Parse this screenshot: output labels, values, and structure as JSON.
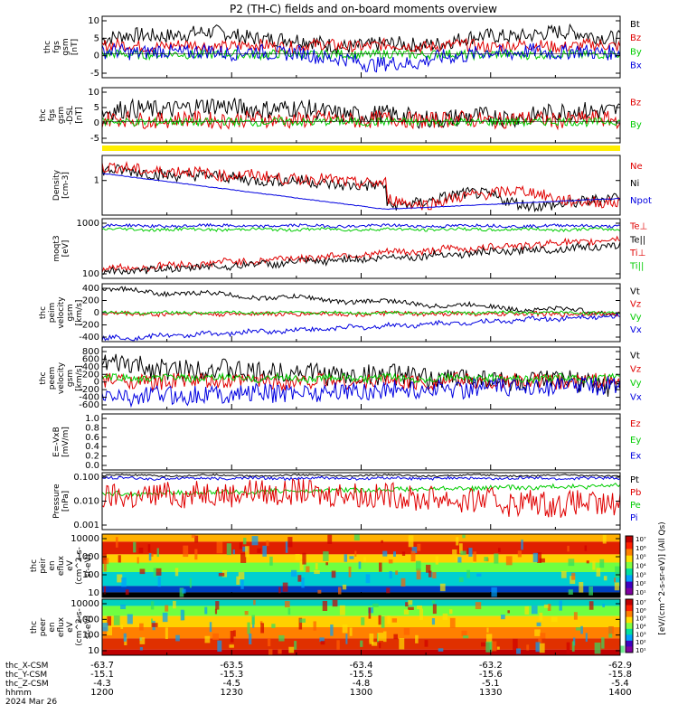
{
  "title": "P2 (TH-C) fields and on-board moments overview",
  "colors": {
    "black": "#000000",
    "red": "#e00000",
    "green": "#00cc00",
    "blue": "#0000e0",
    "yellow": "#ffee00"
  },
  "panels": [
    {
      "id": "fgs",
      "ylabel": [
        "thc",
        "fgs",
        "gsm",
        "[nT]"
      ],
      "ticks": [
        "10",
        "5",
        "0",
        "-5"
      ],
      "yrange": [
        -7,
        11
      ],
      "legend": [
        {
          "text": "Bt",
          "color": "#000000"
        },
        {
          "text": "Bz",
          "color": "#e00000"
        },
        {
          "text": "By",
          "color": "#00cc00"
        },
        {
          "text": "Bx",
          "color": "#0000e0"
        }
      ]
    },
    {
      "id": "fgs_dsl",
      "ylabel": [
        "thc",
        "fgs",
        "gsm",
        "-DSL",
        "[nT]"
      ],
      "ticks": [
        "10",
        "5",
        "0",
        "-5"
      ],
      "yrange": [
        -7,
        11
      ],
      "legend": [
        {
          "text": "Bz",
          "color": "#e00000"
        },
        {
          "text": "By",
          "color": "#00cc00"
        }
      ]
    },
    {
      "id": "density",
      "ylabel": [
        "Density",
        "[cm-3]"
      ],
      "ticks": [
        "1"
      ],
      "yrange": [
        0,
        1
      ],
      "legend": [
        {
          "text": "Ne",
          "color": "#e00000"
        },
        {
          "text": "Ni",
          "color": "#000000"
        },
        {
          "text": "Npot",
          "color": "#0000e0"
        }
      ]
    },
    {
      "id": "temp",
      "ylabel": [
        "moqt3",
        "[eV]"
      ],
      "ticks": [
        "1000",
        "100"
      ],
      "yrange": [
        0,
        1
      ],
      "legend": [
        {
          "text": "Te⊥",
          "color": "#e00000"
        },
        {
          "text": "Te||",
          "color": "#000000"
        },
        {
          "text": "Ti⊥",
          "color": "#e00000"
        },
        {
          "text": "Ti||",
          "color": "#00cc00"
        }
      ]
    },
    {
      "id": "peim",
      "ylabel": [
        "thc",
        "peim",
        "velocity",
        "gsm",
        "[km/s]"
      ],
      "ticks": [
        "400",
        "200",
        "0",
        "-200",
        "-400"
      ],
      "yrange": [
        -500,
        500
      ],
      "legend": [
        {
          "text": "Vt",
          "color": "#000000"
        },
        {
          "text": "Vz",
          "color": "#e00000"
        },
        {
          "text": "Vy",
          "color": "#00cc00"
        },
        {
          "text": "Vx",
          "color": "#0000e0"
        }
      ]
    },
    {
      "id": "peem",
      "ylabel": [
        "thc",
        "peem",
        "velocity",
        "gsm",
        "[km/s]"
      ],
      "ticks": [
        "800",
        "600",
        "400",
        "200",
        "0",
        "-200",
        "-400",
        "-600"
      ],
      "yrange": [
        -700,
        800
      ],
      "legend": [
        {
          "text": "Vt",
          "color": "#000000"
        },
        {
          "text": "Vz",
          "color": "#e00000"
        },
        {
          "text": "Vy",
          "color": "#00cc00"
        },
        {
          "text": "Vx",
          "color": "#0000e0"
        }
      ]
    },
    {
      "id": "exb",
      "ylabel": [
        "E=-VxB",
        "[mV/m]"
      ],
      "ticks": [
        "1.0",
        "0.8",
        "0.6",
        "0.4",
        "0.2",
        "0.0"
      ],
      "yrange": [
        0,
        1
      ],
      "legend": [
        {
          "text": "Ez",
          "color": "#e00000"
        },
        {
          "text": "Ey",
          "color": "#00cc00"
        },
        {
          "text": "Ex",
          "color": "#0000e0"
        }
      ]
    },
    {
      "id": "pressure",
      "ylabel": [
        "Pressure",
        "[nPa]"
      ],
      "ticks": [
        "0.100",
        "0.010",
        "0.001"
      ],
      "yrange": [
        0,
        1
      ],
      "legend": [
        {
          "text": "Pt",
          "color": "#000000"
        },
        {
          "text": "Pb",
          "color": "#e00000"
        },
        {
          "text": "Pe",
          "color": "#00cc00"
        },
        {
          "text": "Pi",
          "color": "#0000e0"
        }
      ]
    },
    {
      "id": "peir",
      "ylabel": [
        "thc",
        "peir",
        "en",
        "eflux",
        "eV",
        "(cm^2-s-",
        "sr-eV)"
      ],
      "ticks": [
        "10000",
        "1000",
        "100",
        "10"
      ]
    },
    {
      "id": "peer",
      "ylabel": [
        "thc",
        "peer",
        "en",
        "eflux",
        "eV",
        "(cm^2-s-",
        "sr-eV)"
      ],
      "ticks": [
        "10000",
        "1000",
        "100",
        "10"
      ]
    }
  ],
  "colorbar": {
    "ticks": [
      "10⁷",
      "10⁶",
      "10⁵",
      "10⁴",
      "10³",
      "10²",
      "10¹"
    ],
    "label": "[eV/(cm^2-s-sr-eV)] (All Qs)"
  },
  "xaxis": {
    "row_labels": [
      "thc_X-CSM",
      "thc_Y-CSM",
      "thc_Z-CSM",
      "hhmm",
      "2024 Mar 26"
    ],
    "columns": [
      {
        "x": "-63.7",
        "y": "-15.1",
        "z": "-4.3",
        "t": "1200"
      },
      {
        "x": "-63.5",
        "y": "-15.3",
        "z": "-4.5",
        "t": "1230"
      },
      {
        "x": "-63.4",
        "y": "-15.5",
        "z": "-4.8",
        "t": "1300"
      },
      {
        "x": "-63.2",
        "y": "-15.6",
        "z": "-5.1",
        "t": "1330"
      },
      {
        "x": "-62.9",
        "y": "-15.8",
        "z": "-5.4",
        "t": "1400"
      }
    ]
  },
  "chart_data": {
    "type": "line",
    "title": "P2 (TH-C) fields and on-board moments overview",
    "x_ticks": [
      "1200",
      "1230",
      "1300",
      "1330",
      "1400"
    ],
    "series": [
      {
        "name": "Bt",
        "panel": "fgs",
        "values": [
          5,
          6,
          6,
          5,
          3,
          7,
          9,
          4,
          4,
          5,
          5,
          4
        ]
      },
      {
        "name": "Bz",
        "panel": "fgs",
        "values": [
          3,
          2,
          4,
          1,
          2,
          4,
          1,
          3,
          2,
          2,
          2,
          3
        ]
      },
      {
        "name": "By",
        "panel": "fgs",
        "values": [
          0,
          -1,
          0,
          -1,
          0,
          -2,
          0,
          -1,
          -1,
          1,
          0,
          0
        ]
      },
      {
        "name": "Bx",
        "panel": "fgs",
        "values": [
          2,
          1,
          -3,
          -2,
          1,
          -4,
          -7,
          -2,
          -2,
          0,
          1,
          1
        ]
      }
    ],
    "xlabel": "",
    "ylabel": ""
  }
}
